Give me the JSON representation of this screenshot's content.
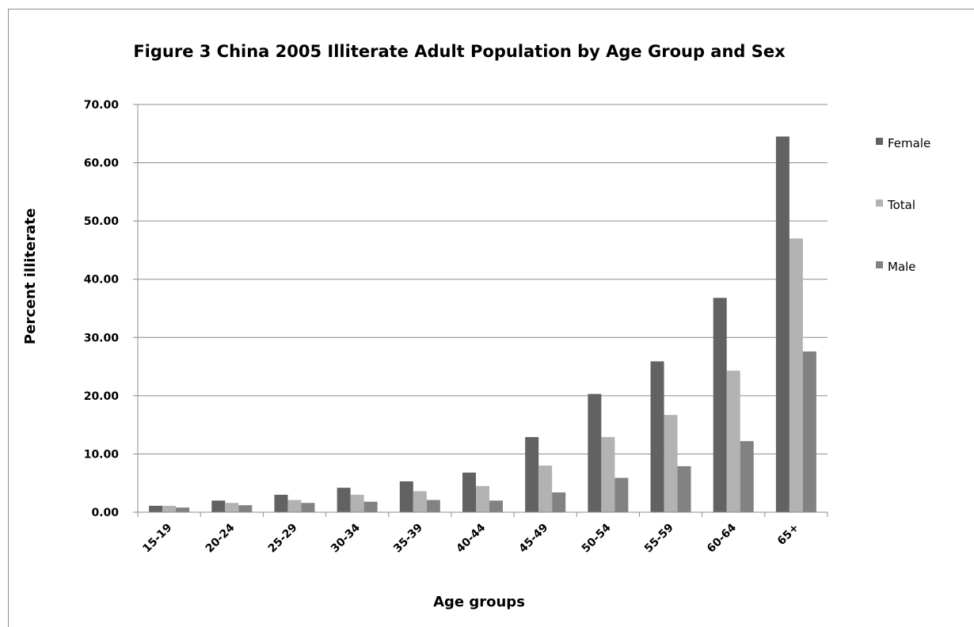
{
  "chart_data": {
    "type": "bar",
    "title": "Figure 3 China 2005 Illiterate Adult Population by Age Group and Sex",
    "xlabel": "Age groups",
    "ylabel": "Percent illiterate",
    "ylim": [
      0,
      70
    ],
    "yticks": [
      "0.00",
      "10.00",
      "20.00",
      "30.00",
      "40.00",
      "50.00",
      "60.00",
      "70.00"
    ],
    "grid": true,
    "legend_position": "right",
    "categories": [
      "15-19",
      "20-24",
      "25-29",
      "30-34",
      "35-39",
      "40-44",
      "45-49",
      "50-54",
      "55-59",
      "60-64",
      "65+"
    ],
    "series": [
      {
        "name": "Female",
        "color": "#626262",
        "values": [
          1.1,
          2.0,
          3.0,
          4.2,
          5.3,
          6.8,
          12.9,
          20.3,
          25.9,
          36.8,
          64.5
        ]
      },
      {
        "name": "Total",
        "color": "#b2b2b2",
        "values": [
          1.1,
          1.6,
          2.1,
          3.0,
          3.6,
          4.5,
          8.0,
          12.9,
          16.7,
          24.3,
          47.0
        ]
      },
      {
        "name": "Male",
        "color": "#828282",
        "values": [
          0.8,
          1.2,
          1.6,
          1.8,
          2.1,
          2.0,
          3.4,
          5.9,
          7.9,
          12.2,
          27.6
        ]
      }
    ]
  }
}
